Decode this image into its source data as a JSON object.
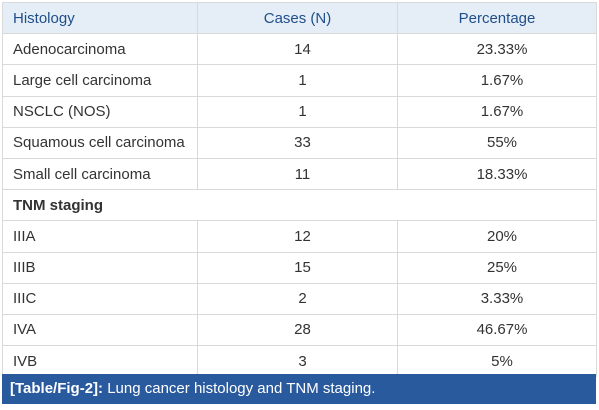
{
  "table": {
    "headers": [
      "Histology",
      "Cases (N)",
      "Percentage"
    ],
    "histology_rows": [
      {
        "label": "Adenocarcinoma",
        "cases": "14",
        "percent": "23.33%"
      },
      {
        "label": "Large cell carcinoma",
        "cases": "1",
        "percent": "1.67%"
      },
      {
        "label": "NSCLC (NOS)",
        "cases": "1",
        "percent": "1.67%"
      },
      {
        "label": "Squamous cell carcinoma",
        "cases": "33",
        "percent": "55%"
      },
      {
        "label": "Small cell carcinoma",
        "cases": "11",
        "percent": "18.33%"
      }
    ],
    "section_title": "TNM staging",
    "staging_rows": [
      {
        "label": "IIIA",
        "cases": "12",
        "percent": "20%"
      },
      {
        "label": "IIIB",
        "cases": "15",
        "percent": "25%"
      },
      {
        "label": "IIIC",
        "cases": "2",
        "percent": "3.33%"
      },
      {
        "label": "IVA",
        "cases": "28",
        "percent": "46.67%"
      },
      {
        "label": "IVB",
        "cases": "3",
        "percent": "5%"
      }
    ]
  },
  "caption": {
    "label": "[Table/Fig-2]:",
    "text": " Lung cancer histology and TNM staging."
  },
  "colors": {
    "header_bg": "#e5eef7",
    "header_text": "#1f4e8a",
    "caption_bg": "#2a5a9e",
    "border": "#d9d9d9"
  }
}
